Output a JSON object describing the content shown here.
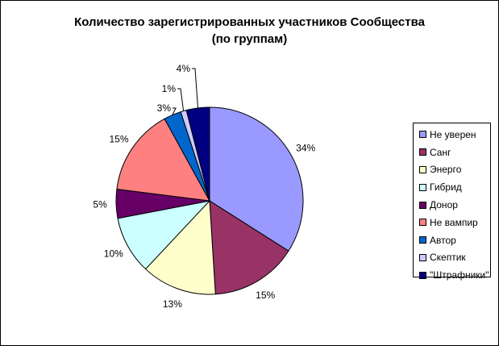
{
  "chart_data": {
    "type": "pie",
    "title": "Количество зарегистрированных участников Сообщества (по группам)",
    "title_lines": [
      "Количество зарегистрированных участников Сообщества",
      "(по группам)"
    ],
    "categories": [
      "Не уверен",
      "Санг",
      "Энерго",
      "Гибрид",
      "Донор",
      "Не вампир",
      "Автор",
      "Скептик",
      "\"Штрафники\""
    ],
    "values": [
      34,
      15,
      13,
      10,
      5,
      15,
      3,
      1,
      4
    ],
    "labels": [
      "34%",
      "15%",
      "13%",
      "10%",
      "5%",
      "15%",
      "3%",
      "1%",
      "4%"
    ],
    "colors": [
      "#9999FF",
      "#993366",
      "#FFFFCC",
      "#CCFFFF",
      "#660066",
      "#FF8080",
      "#0066CC",
      "#CCCCFF",
      "#000080"
    ],
    "start_angle_deg": 0,
    "direction": "clockwise",
    "legend": "right",
    "slice_border_color": "#000000"
  }
}
